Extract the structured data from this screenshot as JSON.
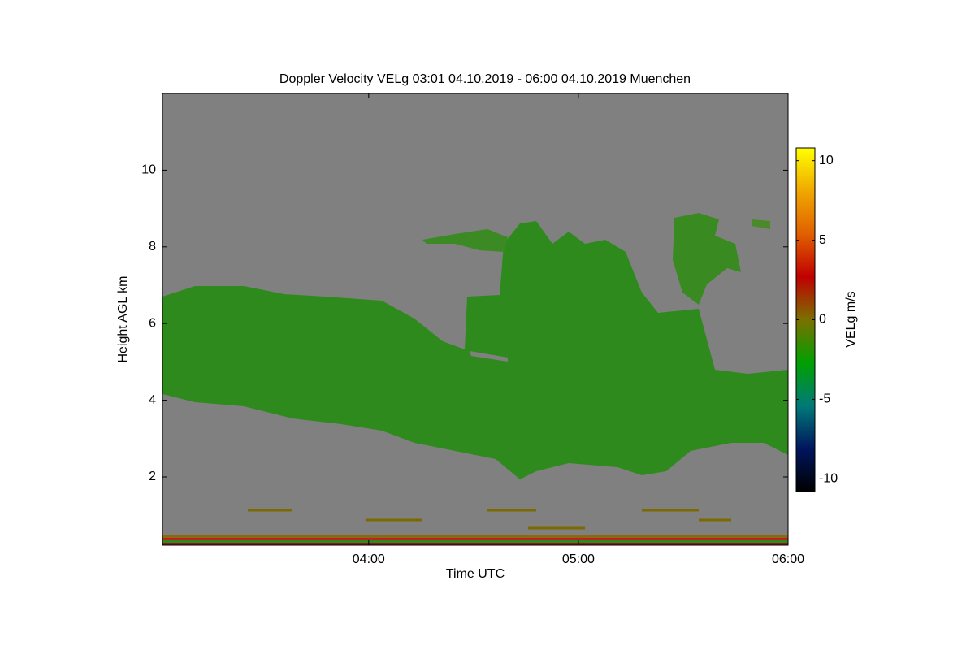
{
  "chart_data": {
    "type": "time-height",
    "title": "Doppler Velocity VELg   03:01 04.10.2019 - 06:00 04.10.2019 Muenchen",
    "x_label": "Time UTC",
    "y_label": "Height AGL km",
    "xlim": [
      1,
      180
    ],
    "xticks": [
      {
        "value": 60,
        "label": "04:00"
      },
      {
        "value": 120,
        "label": "05:00"
      },
      {
        "value": 180,
        "label": "06:00"
      }
    ],
    "ylim": [
      0.22,
      12
    ],
    "yticks": [
      2,
      4,
      6,
      8,
      10
    ],
    "background": "#808080",
    "colorbar": {
      "label": "VELg m/s",
      "lim": [
        -10.8,
        10.8
      ],
      "ticks": [
        -10,
        -5,
        0,
        5,
        10
      ],
      "colormap": [
        "#000000",
        "#00155e",
        "#007a78",
        "#00a000",
        "#7a7000",
        "#c00000",
        "#e06000",
        "#f0a800",
        "#ffff00"
      ]
    }
  }
}
